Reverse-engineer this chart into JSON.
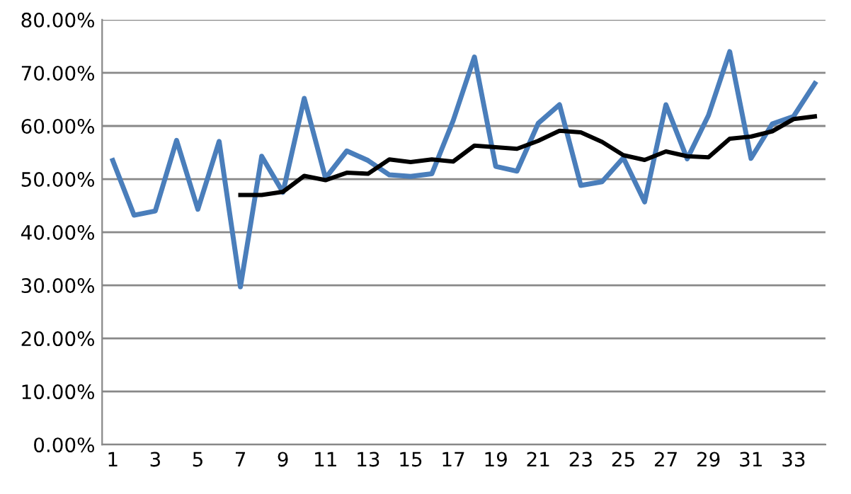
{
  "chart_data": {
    "type": "line",
    "categories": [
      "1",
      null,
      "3",
      null,
      "5",
      null,
      "7",
      null,
      "9",
      null,
      "11",
      null,
      "13",
      null,
      "15",
      null,
      "17",
      null,
      "19",
      null,
      "21",
      null,
      "23",
      null,
      "25",
      null,
      "27",
      null,
      "29",
      null,
      "31",
      null,
      "33",
      null
    ],
    "series": [
      {
        "color": "#4a7ebb",
        "values": [
          53.5,
          43.2,
          44.0,
          57.3,
          44.3,
          57.1,
          29.7,
          54.3,
          47.5,
          65.2,
          50.2,
          55.3,
          53.5,
          50.8,
          50.5,
          51.0,
          61.0,
          73.0,
          52.4,
          51.5,
          60.5,
          64.0,
          48.8,
          49.5,
          54.0,
          45.7,
          64.0,
          53.8,
          62.0,
          74.0,
          53.9,
          60.4,
          61.8,
          68.0
        ]
      },
      {
        "color": "#000000",
        "values": [
          null,
          null,
          null,
          null,
          null,
          null,
          47.0,
          47.0,
          47.6,
          50.6,
          49.8,
          51.2,
          51.0,
          53.7,
          53.2,
          53.7,
          53.3,
          56.3,
          56.0,
          55.7,
          57.2,
          59.1,
          58.8,
          57.0,
          54.5,
          53.6,
          55.2,
          54.3,
          54.1,
          57.6,
          58.0,
          59.0,
          61.3,
          61.8
        ]
      }
    ],
    "ylim": [
      0,
      80
    ],
    "yticks": [
      {
        "value": 0,
        "label": "0.00%"
      },
      {
        "value": 10,
        "label": "10.00%"
      },
      {
        "value": 20,
        "label": "20.00%"
      },
      {
        "value": 30,
        "label": "30.00%"
      },
      {
        "value": 40,
        "label": "40.00%"
      },
      {
        "value": 50,
        "label": "50.00%"
      },
      {
        "value": 60,
        "label": "60.00%"
      },
      {
        "value": 70,
        "label": "70.00%"
      },
      {
        "value": 80,
        "label": "80.00%"
      }
    ],
    "grid": "y",
    "legend": false,
    "marker": "none",
    "line_style": "solid"
  }
}
